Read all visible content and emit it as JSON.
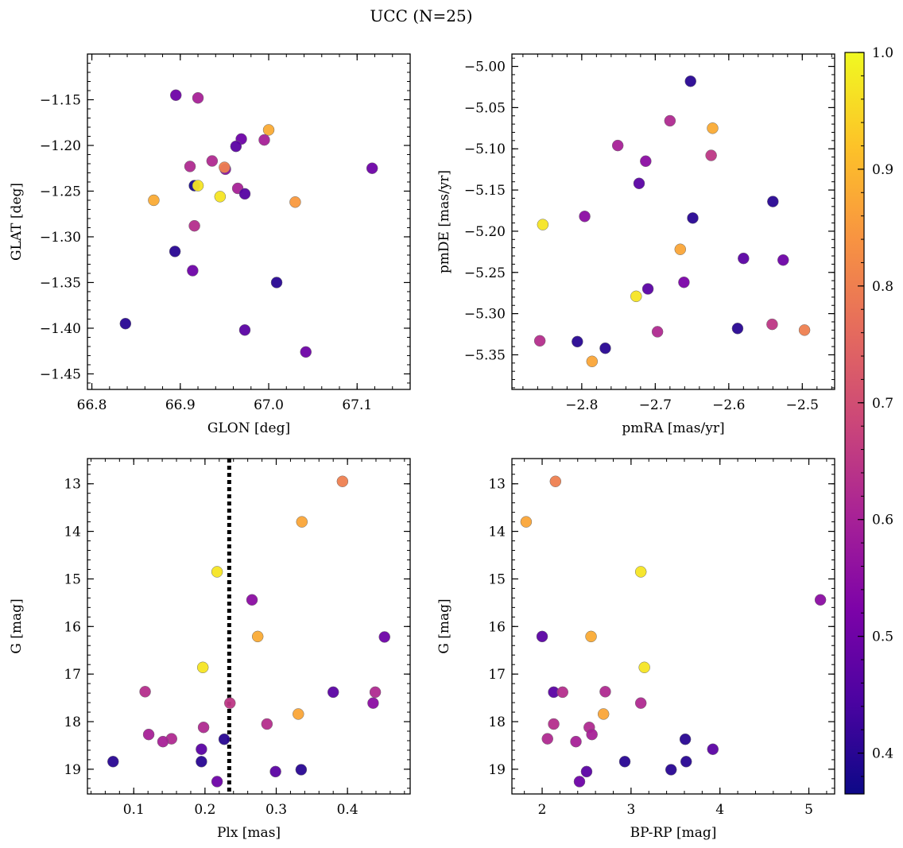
{
  "figure": {
    "suptitle": "UCC (N=25)"
  },
  "colorbar": {
    "colormap": "plasma",
    "range": [
      0.365,
      1.0
    ],
    "ticks": [
      0.4,
      0.5,
      0.6,
      0.7,
      0.8,
      0.9,
      1.0
    ],
    "tick_labels": [
      "0.4",
      "0.5",
      "0.6",
      "0.7",
      "0.8",
      "0.9",
      "1.0"
    ]
  },
  "chart_data": [
    {
      "type": "scatter",
      "xlabel": "GLON [deg]",
      "ylabel": "GLAT [deg]",
      "xlim": [
        66.795,
        67.16
      ],
      "ylim": [
        -1.467,
        -1.1
      ],
      "xticks": [
        66.8,
        66.9,
        67.0,
        67.1
      ],
      "xtick_labels": [
        "66.8",
        "66.9",
        "67.0",
        "67.1"
      ],
      "yticks": [
        -1.45,
        -1.4,
        -1.35,
        -1.3,
        -1.25,
        -1.2,
        -1.15
      ],
      "ytick_labels": [
        "−1.45",
        "−1.40",
        "−1.35",
        "−1.30",
        "−1.25",
        "−1.20",
        "−1.15"
      ],
      "points": [
        {
          "x": 66.895,
          "y": -1.145,
          "c": 0.5
        },
        {
          "x": 66.92,
          "y": -1.148,
          "c": 0.6
        },
        {
          "x": 67.0,
          "y": -1.183,
          "c": 0.88
        },
        {
          "x": 66.969,
          "y": -1.193,
          "c": 0.5
        },
        {
          "x": 66.995,
          "y": -1.194,
          "c": 0.6
        },
        {
          "x": 66.963,
          "y": -1.201,
          "c": 0.47
        },
        {
          "x": 66.936,
          "y": -1.217,
          "c": 0.62
        },
        {
          "x": 66.911,
          "y": -1.223,
          "c": 0.62
        },
        {
          "x": 66.951,
          "y": -1.226,
          "c": 0.55
        },
        {
          "x": 66.95,
          "y": -1.224,
          "c": 0.8
        },
        {
          "x": 67.117,
          "y": -1.225,
          "c": 0.5
        },
        {
          "x": 66.916,
          "y": -1.244,
          "c": 0.38
        },
        {
          "x": 66.92,
          "y": -1.244,
          "c": 0.97
        },
        {
          "x": 66.965,
          "y": -1.247,
          "c": 0.6
        },
        {
          "x": 66.973,
          "y": -1.253,
          "c": 0.46
        },
        {
          "x": 66.945,
          "y": -1.256,
          "c": 0.97
        },
        {
          "x": 66.87,
          "y": -1.26,
          "c": 0.88
        },
        {
          "x": 67.03,
          "y": -1.262,
          "c": 0.85
        },
        {
          "x": 66.916,
          "y": -1.288,
          "c": 0.63
        },
        {
          "x": 66.894,
          "y": -1.316,
          "c": 0.4
        },
        {
          "x": 66.914,
          "y": -1.337,
          "c": 0.5
        },
        {
          "x": 67.009,
          "y": -1.35,
          "c": 0.4
        },
        {
          "x": 66.838,
          "y": -1.395,
          "c": 0.4
        },
        {
          "x": 66.973,
          "y": -1.402,
          "c": 0.47
        },
        {
          "x": 67.042,
          "y": -1.426,
          "c": 0.5
        }
      ]
    },
    {
      "type": "scatter",
      "xlabel": "pmRA [mas/yr]",
      "ylabel": "pmDE [mas/yr]",
      "xlim": [
        -2.895,
        -2.456
      ],
      "ylim": [
        -5.392,
        -4.985
      ],
      "xticks": [
        -2.8,
        -2.7,
        -2.6,
        -2.5
      ],
      "xtick_labels": [
        "−2.8",
        "−2.7",
        "−2.6",
        "−2.5"
      ],
      "yticks": [
        -5.35,
        -5.3,
        -5.25,
        -5.2,
        -5.15,
        -5.1,
        -5.05,
        -5.0
      ],
      "ytick_labels": [
        "−5.35",
        "−5.30",
        "−5.25",
        "−5.20",
        "−5.15",
        "−5.10",
        "−5.05",
        "−5.00"
      ],
      "points": [
        {
          "x": -2.652,
          "y": -5.018,
          "c": 0.4
        },
        {
          "x": -2.68,
          "y": -5.066,
          "c": 0.62
        },
        {
          "x": -2.622,
          "y": -5.075,
          "c": 0.88
        },
        {
          "x": -2.751,
          "y": -5.096,
          "c": 0.6
        },
        {
          "x": -2.624,
          "y": -5.108,
          "c": 0.65
        },
        {
          "x": -2.713,
          "y": -5.115,
          "c": 0.55
        },
        {
          "x": -2.722,
          "y": -5.142,
          "c": 0.47
        },
        {
          "x": -2.54,
          "y": -5.164,
          "c": 0.4
        },
        {
          "x": -2.796,
          "y": -5.182,
          "c": 0.55
        },
        {
          "x": -2.649,
          "y": -5.184,
          "c": 0.4
        },
        {
          "x": -2.853,
          "y": -5.192,
          "c": 0.97
        },
        {
          "x": -2.666,
          "y": -5.222,
          "c": 0.87
        },
        {
          "x": -2.58,
          "y": -5.233,
          "c": 0.47
        },
        {
          "x": -2.526,
          "y": -5.235,
          "c": 0.5
        },
        {
          "x": -2.661,
          "y": -5.262,
          "c": 0.52
        },
        {
          "x": -2.71,
          "y": -5.27,
          "c": 0.47
        },
        {
          "x": -2.726,
          "y": -5.279,
          "c": 0.97
        },
        {
          "x": -2.541,
          "y": -5.313,
          "c": 0.65
        },
        {
          "x": -2.588,
          "y": -5.318,
          "c": 0.4
        },
        {
          "x": -2.497,
          "y": -5.32,
          "c": 0.8
        },
        {
          "x": -2.697,
          "y": -5.322,
          "c": 0.62
        },
        {
          "x": -2.857,
          "y": -5.333,
          "c": 0.63
        },
        {
          "x": -2.806,
          "y": -5.334,
          "c": 0.4
        },
        {
          "x": -2.768,
          "y": -5.342,
          "c": 0.4
        },
        {
          "x": -2.786,
          "y": -5.358,
          "c": 0.87
        }
      ]
    },
    {
      "type": "scatter",
      "xlabel": "Plx [mas]",
      "ylabel": "G [mag]",
      "xlim": [
        0.035,
        0.488
      ],
      "ylim": [
        19.52,
        12.47
      ],
      "y_inverted": true,
      "xticks": [
        0.1,
        0.2,
        0.3,
        0.4
      ],
      "xtick_labels": [
        "0.1",
        "0.2",
        "0.3",
        "0.4"
      ],
      "yticks": [
        13,
        14,
        15,
        16,
        17,
        18,
        19
      ],
      "ytick_labels": [
        "13",
        "14",
        "15",
        "16",
        "17",
        "18",
        "19"
      ],
      "vline": {
        "x": 0.234,
        "style": "dotted",
        "color": "#000000"
      },
      "points": [
        {
          "x": 0.393,
          "y": 12.95,
          "c": 0.8
        },
        {
          "x": 0.336,
          "y": 13.8,
          "c": 0.87
        },
        {
          "x": 0.217,
          "y": 14.85,
          "c": 0.97
        },
        {
          "x": 0.266,
          "y": 15.44,
          "c": 0.55
        },
        {
          "x": 0.274,
          "y": 16.21,
          "c": 0.88
        },
        {
          "x": 0.452,
          "y": 16.22,
          "c": 0.5
        },
        {
          "x": 0.197,
          "y": 16.86,
          "c": 0.97
        },
        {
          "x": 0.116,
          "y": 17.37,
          "c": 0.63
        },
        {
          "x": 0.38,
          "y": 17.38,
          "c": 0.47
        },
        {
          "x": 0.439,
          "y": 17.38,
          "c": 0.62
        },
        {
          "x": 0.235,
          "y": 17.61,
          "c": 0.65
        },
        {
          "x": 0.436,
          "y": 17.61,
          "c": 0.55
        },
        {
          "x": 0.331,
          "y": 17.84,
          "c": 0.87
        },
        {
          "x": 0.287,
          "y": 18.05,
          "c": 0.63
        },
        {
          "x": 0.198,
          "y": 18.12,
          "c": 0.62
        },
        {
          "x": 0.121,
          "y": 18.27,
          "c": 0.6
        },
        {
          "x": 0.153,
          "y": 18.36,
          "c": 0.62
        },
        {
          "x": 0.227,
          "y": 18.37,
          "c": 0.4
        },
        {
          "x": 0.141,
          "y": 18.42,
          "c": 0.6
        },
        {
          "x": 0.195,
          "y": 18.58,
          "c": 0.47
        },
        {
          "x": 0.071,
          "y": 18.84,
          "c": 0.4
        },
        {
          "x": 0.195,
          "y": 18.84,
          "c": 0.4
        },
        {
          "x": 0.335,
          "y": 19.01,
          "c": 0.4
        },
        {
          "x": 0.299,
          "y": 19.05,
          "c": 0.47
        },
        {
          "x": 0.217,
          "y": 19.26,
          "c": 0.5
        }
      ]
    },
    {
      "type": "scatter",
      "xlabel": "BP-RP [mag]",
      "ylabel": "G [mag]",
      "xlim": [
        1.66,
        5.29
      ],
      "ylim": [
        19.52,
        12.47
      ],
      "y_inverted": true,
      "xticks": [
        2,
        3,
        4,
        5
      ],
      "xtick_labels": [
        "2",
        "3",
        "4",
        "5"
      ],
      "yticks": [
        13,
        14,
        15,
        16,
        17,
        18,
        19
      ],
      "ytick_labels": [
        "13",
        "14",
        "15",
        "16",
        "17",
        "18",
        "19"
      ],
      "points": [
        {
          "x": 2.15,
          "y": 12.95,
          "c": 0.8
        },
        {
          "x": 1.82,
          "y": 13.8,
          "c": 0.87
        },
        {
          "x": 3.11,
          "y": 14.85,
          "c": 0.97
        },
        {
          "x": 5.13,
          "y": 15.44,
          "c": 0.55
        },
        {
          "x": 2.0,
          "y": 16.21,
          "c": 0.47
        },
        {
          "x": 2.55,
          "y": 16.21,
          "c": 0.88
        },
        {
          "x": 3.15,
          "y": 16.86,
          "c": 0.97
        },
        {
          "x": 2.13,
          "y": 17.38,
          "c": 0.47
        },
        {
          "x": 2.23,
          "y": 17.38,
          "c": 0.63
        },
        {
          "x": 2.71,
          "y": 17.37,
          "c": 0.62
        },
        {
          "x": 3.11,
          "y": 17.61,
          "c": 0.62
        },
        {
          "x": 2.69,
          "y": 17.84,
          "c": 0.87
        },
        {
          "x": 2.13,
          "y": 18.05,
          "c": 0.63
        },
        {
          "x": 2.53,
          "y": 18.12,
          "c": 0.62
        },
        {
          "x": 2.56,
          "y": 18.27,
          "c": 0.6
        },
        {
          "x": 2.06,
          "y": 18.36,
          "c": 0.62
        },
        {
          "x": 3.61,
          "y": 18.37,
          "c": 0.4
        },
        {
          "x": 2.38,
          "y": 18.42,
          "c": 0.6
        },
        {
          "x": 3.92,
          "y": 18.58,
          "c": 0.47
        },
        {
          "x": 2.93,
          "y": 18.84,
          "c": 0.4
        },
        {
          "x": 3.62,
          "y": 18.84,
          "c": 0.4
        },
        {
          "x": 3.45,
          "y": 19.01,
          "c": 0.4
        },
        {
          "x": 2.5,
          "y": 19.05,
          "c": 0.47
        },
        {
          "x": 2.42,
          "y": 19.26,
          "c": 0.5
        }
      ]
    }
  ]
}
